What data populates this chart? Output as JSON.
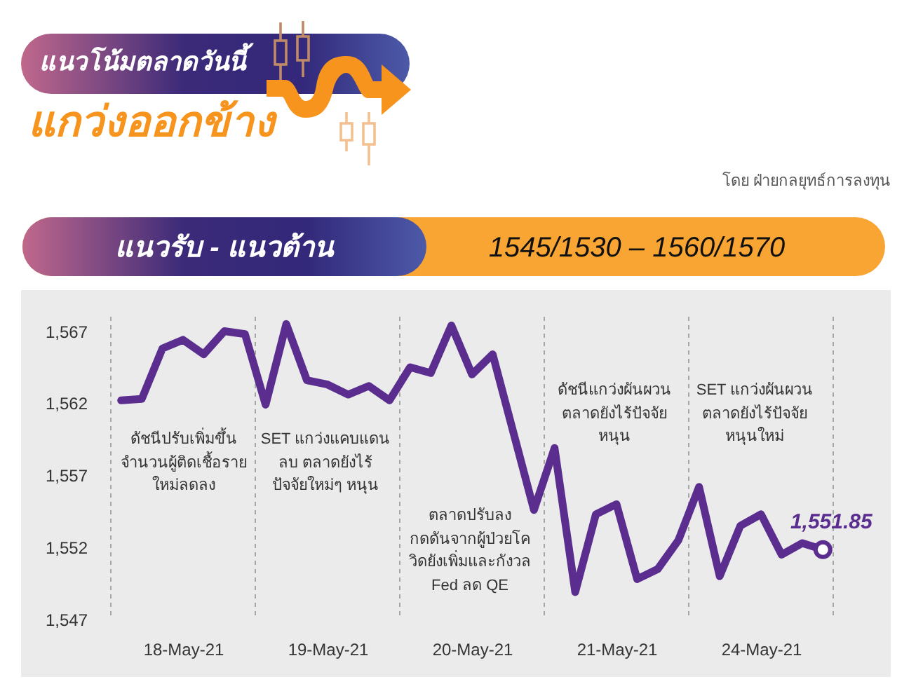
{
  "chart_data": {
    "type": "line",
    "title": "แนวโน้มตลาดวันนี้",
    "subtitle": "แกว่งออกข้าง",
    "categories": [
      null,
      null,
      null,
      "18-May-21",
      null,
      null,
      null,
      null,
      null,
      null,
      "19-May-21",
      null,
      null,
      null,
      null,
      null,
      null,
      "20-May-21",
      null,
      null,
      null,
      null,
      null,
      null,
      "21-May-21",
      null,
      null,
      null,
      null,
      null,
      null,
      "24-May-21",
      null,
      null,
      null
    ],
    "ylim": [
      1547,
      1568
    ],
    "yticks": [
      {
        "value": 1547,
        "label": "1,547"
      },
      {
        "value": 1552,
        "label": "1,552"
      },
      {
        "value": 1557,
        "label": "1,557"
      },
      {
        "value": 1562,
        "label": "1,562"
      },
      {
        "value": 1567,
        "label": "1,567"
      }
    ],
    "grid": "x",
    "series": [
      {
        "color": "#5a2d8e",
        "values": [
          1562.2,
          1562.3,
          1565.8,
          1566.4,
          1565.4,
          1567.0,
          1566.8,
          1561.9,
          1567.5,
          1563.6,
          1563.3,
          1562.6,
          1563.2,
          1562.2,
          1564.5,
          1564.1,
          1567.4,
          1564.0,
          1565.4,
          1560.0,
          1554.6,
          1558.9,
          1548.9,
          1554.3,
          1555.0,
          1549.8,
          1550.5,
          1552.5,
          1556.2,
          1550.0,
          1553.5,
          1554.3,
          1551.5,
          1552.3,
          1551.85
        ]
      },
      {
        "type": "scatter",
        "marker": "circle",
        "color": "#5a2d8e",
        "values": [
          null,
          null,
          null,
          null,
          null,
          null,
          null,
          null,
          null,
          null,
          null,
          null,
          null,
          null,
          null,
          null,
          null,
          null,
          null,
          null,
          null,
          null,
          null,
          null,
          null,
          null,
          null,
          null,
          null,
          null,
          null,
          null,
          null,
          null,
          1551.85
        ],
        "value_labels": [
          null,
          null,
          null,
          null,
          null,
          null,
          null,
          null,
          null,
          null,
          null,
          null,
          null,
          null,
          null,
          null,
          null,
          null,
          null,
          null,
          null,
          null,
          null,
          null,
          null,
          null,
          null,
          null,
          null,
          null,
          null,
          null,
          null,
          null,
          "1,551.85"
        ]
      }
    ],
    "annotations": [
      "โดย ฝ่ายกลยุทธ์การลงทุน",
      "แนวรับ - แนวต้าน",
      "1545/1530 – 1560/1570",
      "ดัชนีปรับเพิ่มขึ้น\nจำนวนผู้ติดเชื้อราย\nใหม่ลดลง",
      "SET แกว่งแคบแดน\nลบ ตลาดยังไร้\nปัจจัยใหม่ๆ หนุน",
      "ตลาดปรับลง\nกดดันจากผู้ป่วยโค\nวิดยังเพิ่มและกังวล\nFed ลด QE",
      "ดัชนีแกว่งผันผวน\nตลาดยังไร้ปัจจัย\nหนุน",
      "SET แกว่งผันผวน\nตลาดยังไร้ปัจจัย\nหนุนใหม่"
    ]
  }
}
